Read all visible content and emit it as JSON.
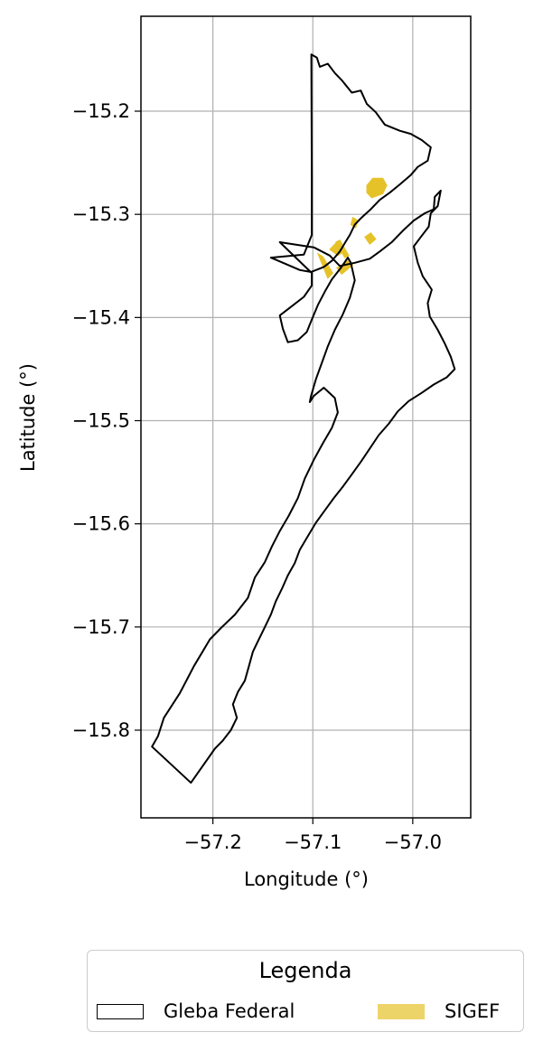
{
  "chart_data": {
    "type": "map",
    "xlabel": "Longitude (°)",
    "ylabel": "Latitude (°)",
    "xlim": [
      -57.272,
      -56.942
    ],
    "ylim": [
      -15.885,
      -15.108
    ],
    "xticks": [
      -57.2,
      -57.1,
      -57.0
    ],
    "xtick_labels": [
      "−57.2",
      "−57.1",
      "−57.0"
    ],
    "yticks": [
      -15.2,
      -15.3,
      -15.4,
      -15.5,
      -15.6,
      -15.7,
      -15.8
    ],
    "ytick_labels": [
      "−15.2",
      "−15.3",
      "−15.4",
      "−15.5",
      "−15.6",
      "−15.7",
      "−15.8"
    ],
    "grid": true,
    "legend": {
      "title": "Legenda",
      "placement": "bottom-center",
      "entries": [
        {
          "label": "Gleba Federal",
          "color": "#000000",
          "fill": "none"
        },
        {
          "label": "SIGEF",
          "color": "#e6c229"
        }
      ]
    },
    "layers": [
      {
        "name": "Gleba Federal",
        "kind": "outline",
        "color": "#000000",
        "coords": [
          [
            -57.1015,
            -15.145
          ],
          [
            -57.096,
            -15.148
          ],
          [
            -57.093,
            -15.157
          ],
          [
            -57.085,
            -15.154
          ],
          [
            -57.078,
            -15.163
          ],
          [
            -57.071,
            -15.17
          ],
          [
            -57.061,
            -15.182
          ],
          [
            -57.052,
            -15.18
          ],
          [
            -57.046,
            -15.193
          ],
          [
            -57.037,
            -15.201
          ],
          [
            -57.028,
            -15.213
          ],
          [
            -57.013,
            -15.219
          ],
          [
            -57.002,
            -15.222
          ],
          [
            -56.991,
            -15.228
          ],
          [
            -56.982,
            -15.235
          ],
          [
            -56.985,
            -15.248
          ],
          [
            -56.995,
            -15.254
          ],
          [
            -57.002,
            -15.262
          ],
          [
            -57.013,
            -15.271
          ],
          [
            -57.023,
            -15.279
          ],
          [
            -57.033,
            -15.286
          ],
          [
            -57.042,
            -15.295
          ],
          [
            -57.051,
            -15.303
          ],
          [
            -57.058,
            -15.31
          ],
          [
            -57.063,
            -15.32
          ],
          [
            -57.068,
            -15.328
          ],
          [
            -57.073,
            -15.336
          ],
          [
            -57.081,
            -15.345
          ],
          [
            -57.089,
            -15.351
          ],
          [
            -57.102,
            -15.356
          ],
          [
            -57.133,
            -15.327
          ],
          [
            -57.099,
            -15.332
          ],
          [
            -57.083,
            -15.34
          ],
          [
            -57.073,
            -15.35
          ],
          [
            -57.058,
            -15.347
          ],
          [
            -57.043,
            -15.343
          ],
          [
            -57.033,
            -15.336
          ],
          [
            -57.021,
            -15.327
          ],
          [
            -57.01,
            -15.316
          ],
          [
            -56.999,
            -15.306
          ],
          [
            -56.988,
            -15.299
          ],
          [
            -56.979,
            -15.295
          ],
          [
            -56.978,
            -15.283
          ],
          [
            -56.972,
            -15.277
          ],
          [
            -56.975,
            -15.292
          ],
          [
            -56.982,
            -15.299
          ],
          [
            -56.984,
            -15.312
          ],
          [
            -56.992,
            -15.322
          ],
          [
            -56.999,
            -15.331
          ],
          [
            -56.995,
            -15.347
          ],
          [
            -56.99,
            -15.36
          ],
          [
            -56.981,
            -15.373
          ],
          [
            -56.985,
            -15.386
          ],
          [
            -56.983,
            -15.399
          ],
          [
            -56.975,
            -15.412
          ],
          [
            -56.968,
            -15.425
          ],
          [
            -56.962,
            -15.438
          ],
          [
            -56.958,
            -15.45
          ],
          [
            -56.966,
            -15.458
          ],
          [
            -56.979,
            -15.465
          ],
          [
            -56.991,
            -15.473
          ],
          [
            -57.004,
            -15.481
          ],
          [
            -57.015,
            -15.491
          ],
          [
            -57.024,
            -15.503
          ],
          [
            -57.034,
            -15.514
          ],
          [
            -57.043,
            -15.527
          ],
          [
            -57.052,
            -15.54
          ],
          [
            -57.061,
            -15.552
          ],
          [
            -57.07,
            -15.564
          ],
          [
            -57.079,
            -15.575
          ],
          [
            -57.088,
            -15.587
          ],
          [
            -57.097,
            -15.599
          ],
          [
            -57.105,
            -15.612
          ],
          [
            -57.113,
            -15.625
          ],
          [
            -57.118,
            -15.638
          ],
          [
            -57.125,
            -15.65
          ],
          [
            -57.131,
            -15.663
          ],
          [
            -57.137,
            -15.675
          ],
          [
            -57.142,
            -15.688
          ],
          [
            -57.148,
            -15.7
          ],
          [
            -57.154,
            -15.712
          ],
          [
            -57.16,
            -15.724
          ],
          [
            -57.164,
            -15.738
          ],
          [
            -57.168,
            -15.752
          ],
          [
            -57.175,
            -15.763
          ],
          [
            -57.18,
            -15.775
          ],
          [
            -57.176,
            -15.788
          ],
          [
            -57.182,
            -15.8
          ],
          [
            -57.19,
            -15.81
          ],
          [
            -57.198,
            -15.818
          ],
          [
            -57.222,
            -15.851
          ],
          [
            -57.261,
            -15.816
          ],
          [
            -57.255,
            -15.806
          ],
          [
            -57.249,
            -15.788
          ],
          [
            -57.241,
            -15.776
          ],
          [
            -57.233,
            -15.764
          ],
          [
            -57.226,
            -15.751
          ],
          [
            -57.219,
            -15.738
          ],
          [
            -57.211,
            -15.725
          ],
          [
            -57.203,
            -15.712
          ],
          [
            -57.192,
            -15.701
          ],
          [
            -57.178,
            -15.688
          ],
          [
            -57.165,
            -15.672
          ],
          [
            -57.158,
            -15.652
          ],
          [
            -57.148,
            -15.637
          ],
          [
            -57.141,
            -15.622
          ],
          [
            -57.133,
            -15.607
          ],
          [
            -57.124,
            -15.592
          ],
          [
            -57.115,
            -15.575
          ],
          [
            -57.108,
            -15.556
          ],
          [
            -57.099,
            -15.538
          ],
          [
            -57.09,
            -15.522
          ],
          [
            -57.081,
            -15.507
          ],
          [
            -57.075,
            -15.492
          ],
          [
            -57.078,
            -15.478
          ],
          [
            -57.089,
            -15.468
          ],
          [
            -57.099,
            -15.476
          ],
          [
            -57.103,
            -15.482
          ],
          [
            -57.102,
            -15.477
          ],
          [
            -57.097,
            -15.46
          ],
          [
            -57.091,
            -15.444
          ],
          [
            -57.085,
            -15.428
          ],
          [
            -57.078,
            -15.412
          ],
          [
            -57.07,
            -15.397
          ],
          [
            -57.063,
            -15.381
          ],
          [
            -57.058,
            -15.364
          ],
          [
            -57.062,
            -15.347
          ],
          [
            -57.065,
            -15.342
          ],
          [
            -57.072,
            -15.352
          ],
          [
            -57.081,
            -15.363
          ],
          [
            -57.088,
            -15.375
          ],
          [
            -57.095,
            -15.388
          ],
          [
            -57.101,
            -15.402
          ],
          [
            -57.106,
            -15.414
          ],
          [
            -57.115,
            -15.422
          ],
          [
            -57.125,
            -15.424
          ],
          [
            -57.13,
            -15.411
          ],
          [
            -57.133,
            -15.398
          ],
          [
            -57.121,
            -15.389
          ],
          [
            -57.109,
            -15.38
          ],
          [
            -57.101,
            -15.369
          ],
          [
            -57.101,
            -15.356
          ],
          [
            -57.113,
            -15.354
          ],
          [
            -57.142,
            -15.342
          ],
          [
            -57.109,
            -15.339
          ],
          [
            -57.101,
            -15.32
          ],
          [
            -57.101,
            -15.265
          ],
          [
            -57.1015,
            -15.145
          ]
        ]
      },
      {
        "name": "SIGEF",
        "kind": "filled",
        "color": "#e6c229",
        "polygons": [
          [
            [
              -57.046,
              -15.272
            ],
            [
              -57.04,
              -15.265
            ],
            [
              -57.03,
              -15.265
            ],
            [
              -57.026,
              -15.272
            ],
            [
              -57.03,
              -15.28
            ],
            [
              -57.041,
              -15.284
            ],
            [
              -57.046,
              -15.279
            ]
          ],
          [
            [
              -57.06,
              -15.303
            ],
            [
              -57.055,
              -15.306
            ],
            [
              -57.057,
              -15.313
            ],
            [
              -57.062,
              -15.31
            ]
          ],
          [
            [
              -57.077,
              -15.327
            ],
            [
              -57.073,
              -15.325
            ],
            [
              -57.064,
              -15.34
            ],
            [
              -57.068,
              -15.342
            ]
          ],
          [
            [
              -57.083,
              -15.334
            ],
            [
              -57.077,
              -15.328
            ],
            [
              -57.069,
              -15.336
            ],
            [
              -57.075,
              -15.34
            ]
          ],
          [
            [
              -57.095,
              -15.338
            ],
            [
              -57.09,
              -15.341
            ],
            [
              -57.08,
              -15.357
            ],
            [
              -57.085,
              -15.362
            ]
          ],
          [
            [
              -57.065,
              -15.345
            ],
            [
              -57.06,
              -15.349
            ],
            [
              -57.071,
              -15.358
            ],
            [
              -57.076,
              -15.352
            ]
          ],
          [
            [
              -57.048,
              -15.322
            ],
            [
              -57.042,
              -15.318
            ],
            [
              -57.037,
              -15.324
            ],
            [
              -57.043,
              -15.329
            ]
          ]
        ]
      }
    ]
  }
}
